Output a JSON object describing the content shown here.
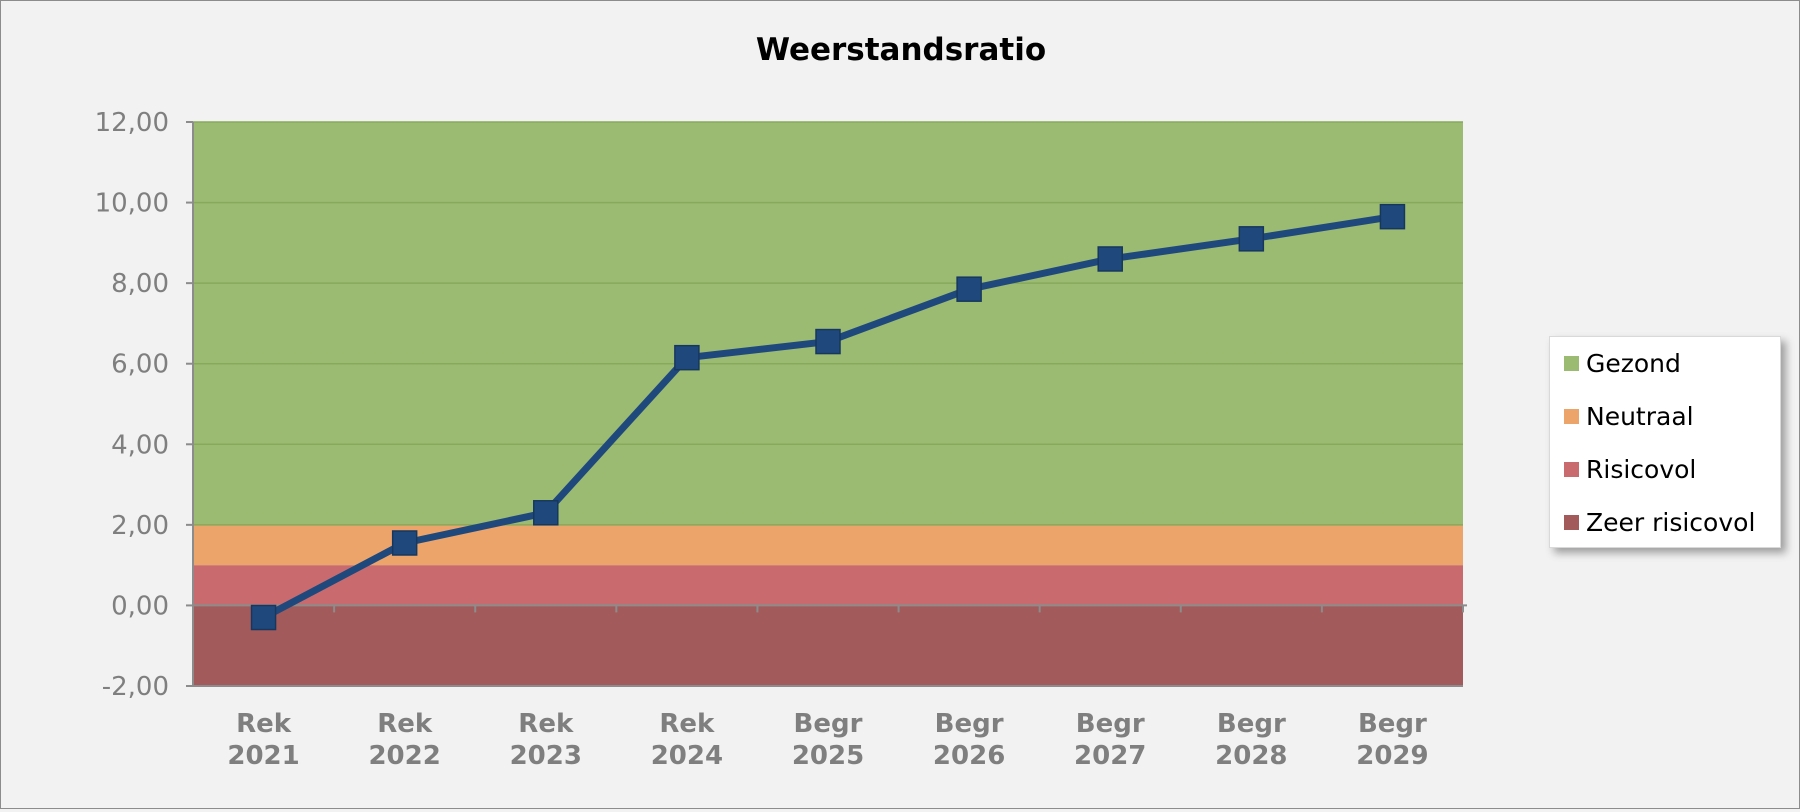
{
  "chart_data": {
    "type": "line",
    "title": "Weerstandsratio",
    "categories": [
      [
        "Rek",
        "2021"
      ],
      [
        "Rek",
        "2022"
      ],
      [
        "Rek",
        "2023"
      ],
      [
        "Rek",
        "2024"
      ],
      [
        "Begr",
        "2025"
      ],
      [
        "Begr",
        "2026"
      ],
      [
        "Begr",
        "2027"
      ],
      [
        "Begr",
        "2028"
      ],
      [
        "Begr",
        "2029"
      ]
    ],
    "series": [
      {
        "values": [
          -0.3,
          1.55,
          2.3,
          6.15,
          6.55,
          7.85,
          8.6,
          9.1,
          9.65
        ],
        "color": "#1f497d"
      }
    ],
    "bands": [
      {
        "name": "Zeer risicovol",
        "from": -2,
        "to": 0,
        "color": "#a35a5a"
      },
      {
        "name": "Risicovol",
        "from": 0,
        "to": 1,
        "color": "#c96b6e"
      },
      {
        "name": "Neutraal",
        "from": 1,
        "to": 2,
        "color": "#eda46a"
      },
      {
        "name": "Gezond",
        "from": 2,
        "to": 12,
        "color": "#9bbb72"
      }
    ],
    "legend": [
      "Gezond",
      "Neutraal",
      "Risicovol",
      "Zeer risicovol"
    ],
    "y_ticks": [
      "12,00",
      "10,00",
      "8,00",
      "6,00",
      "4,00",
      "2,00",
      "0,00",
      "-2,00"
    ],
    "ylim": [
      -2,
      12
    ],
    "grid": true,
    "legend_position": "right"
  }
}
